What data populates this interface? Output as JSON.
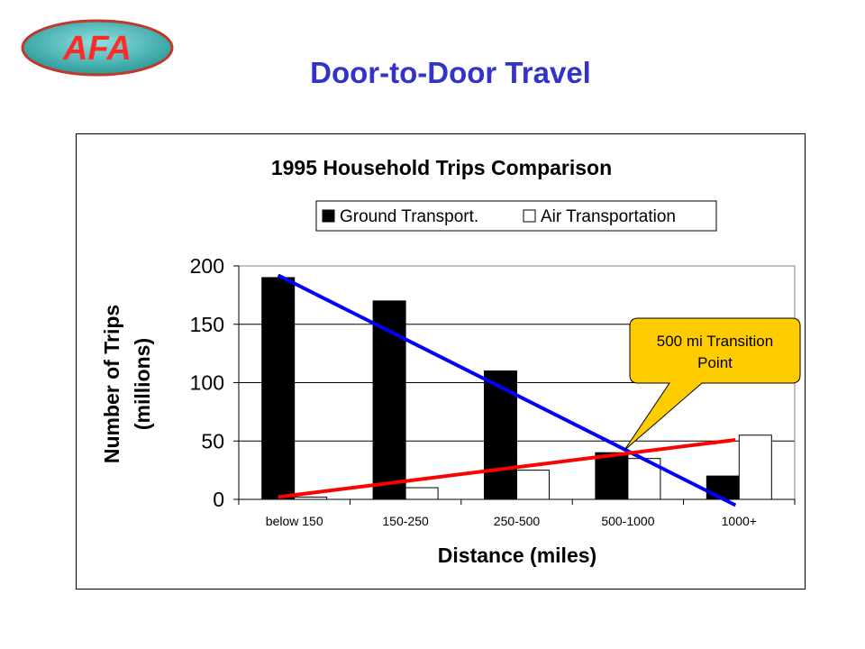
{
  "logo": {
    "text": "AFA"
  },
  "slide": {
    "title": "Door-to-Door Travel"
  },
  "colors": {
    "title": "#3333cc",
    "logo_fill": "#3aa7a7",
    "logo_text": "#ff2a2a",
    "logo_border": "#c0392b",
    "ground_bar": "#000000",
    "air_bar": "#ffffff",
    "ground_trend": "#0000ff",
    "air_trend": "#ff0000",
    "callout_fill": "#ffcc00"
  },
  "chart_data": {
    "type": "bar",
    "title": "1995 Household Trips Comparison",
    "xlabel": "Distance (miles)",
    "ylabel": "Number of Trips",
    "ylabel_unit": "(millions)",
    "categories": [
      "below 150",
      "150-250",
      "250-500",
      "500-1000",
      "1000+"
    ],
    "series": [
      {
        "name": "Ground Transport.",
        "values": [
          190,
          170,
          110,
          40,
          20
        ]
      },
      {
        "name": "Air Transportation",
        "values": [
          2,
          10,
          25,
          35,
          55
        ]
      }
    ],
    "trendlines": [
      {
        "series": "Ground Transport.",
        "from": {
          "category": "below 150",
          "y": 192
        },
        "to": {
          "category": "1000+",
          "y": -5
        }
      },
      {
        "series": "Air Transportation",
        "from": {
          "category": "below 150",
          "y": 2
        },
        "to": {
          "category": "1000+",
          "y": 51
        }
      }
    ],
    "ylim": [
      0,
      200
    ],
    "yticks": [
      0,
      50,
      100,
      150,
      200
    ],
    "grid": true,
    "legend_position": "top",
    "annotation": {
      "text_line1": "500 mi Transition",
      "text_line2": "Point",
      "target_category": "500-1000"
    }
  }
}
